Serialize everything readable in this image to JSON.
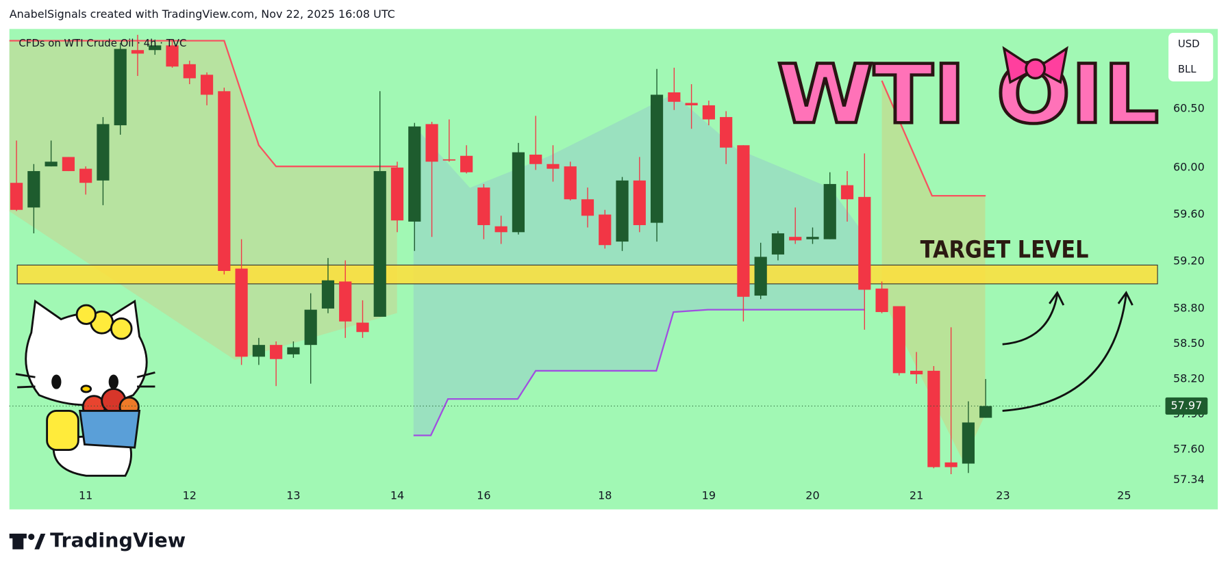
{
  "chart_data": {
    "type": "candlestick",
    "attribution": "AnabelSignals created with TradingView.com, Nov 22, 2025 16:08 UTC",
    "title": "CFDs on WTI Crude Oil · 4h · TVC",
    "currency": "USD",
    "unit": "BLL",
    "annotation": "WTI OIL",
    "brand": "TradingView",
    "up_color": "#1e5c2e",
    "down_color": "#f23645",
    "open": [
      59.87,
      59.66,
      60.01,
      60.09,
      59.99,
      59.89,
      60.36,
      61.0,
      61.0,
      61.04,
      60.88,
      60.79,
      60.65,
      59.14,
      58.39,
      58.49,
      58.41,
      58.49,
      58.8,
      59.03,
      58.68,
      58.73,
      60.0,
      59.54,
      60.37,
      60.07,
      60.1,
      59.83,
      59.5,
      59.45,
      60.11,
      60.03,
      60.01,
      59.73,
      59.6,
      59.37,
      59.89,
      59.53,
      60.64,
      60.55,
      60.53,
      60.43,
      60.19,
      58.91,
      59.26,
      59.41,
      59.39,
      59.39,
      59.85,
      59.75,
      58.97,
      58.82,
      58.27,
      58.27,
      57.49,
      57.48,
      57.87
    ],
    "high": [
      60.23,
      60.03,
      60.23,
      60.09,
      60.01,
      60.43,
      61.06,
      61.13,
      61.09,
      61.09,
      60.91,
      60.81,
      60.68,
      59.39,
      58.55,
      58.52,
      58.52,
      58.93,
      59.23,
      59.21,
      58.87,
      60.65,
      60.05,
      60.38,
      60.39,
      60.41,
      60.19,
      59.86,
      59.59,
      60.21,
      60.44,
      60.19,
      60.05,
      59.83,
      59.64,
      59.92,
      60.09,
      60.84,
      60.85,
      60.71,
      60.57,
      60.48,
      60.19,
      59.36,
      59.46,
      59.66,
      59.49,
      59.96,
      59.97,
      60.12,
      59.03,
      58.82,
      58.43,
      58.31,
      58.64,
      58.01,
      58.2
    ],
    "low": [
      59.63,
      59.44,
      60.01,
      59.97,
      59.77,
      59.68,
      60.28,
      60.78,
      60.96,
      60.85,
      60.71,
      60.53,
      59.09,
      58.32,
      58.32,
      58.14,
      58.38,
      58.16,
      58.76,
      58.55,
      58.55,
      58.73,
      59.45,
      59.29,
      59.41,
      60.05,
      59.95,
      59.39,
      59.35,
      59.43,
      59.98,
      59.88,
      59.72,
      59.49,
      59.31,
      59.29,
      59.45,
      59.37,
      60.49,
      60.33,
      60.36,
      60.03,
      58.69,
      58.88,
      59.21,
      59.35,
      59.35,
      59.39,
      59.54,
      58.62,
      58.76,
      58.23,
      58.16,
      57.44,
      57.39,
      57.4,
      57.87
    ],
    "close": [
      59.64,
      59.97,
      60.05,
      59.97,
      59.87,
      60.37,
      61.01,
      60.97,
      61.04,
      60.86,
      60.76,
      60.62,
      59.12,
      58.39,
      58.49,
      58.37,
      58.47,
      58.79,
      59.04,
      58.69,
      58.6,
      59.97,
      59.55,
      60.35,
      60.05,
      60.06,
      59.96,
      59.51,
      59.45,
      60.13,
      60.03,
      59.99,
      59.73,
      59.59,
      59.34,
      59.89,
      59.51,
      60.62,
      60.56,
      60.53,
      60.41,
      60.17,
      58.9,
      59.24,
      59.44,
      59.38,
      59.41,
      59.86,
      59.73,
      58.96,
      58.77,
      58.25,
      58.24,
      57.45,
      57.45,
      57.83,
      57.97
    ],
    "last_price": {
      "value": 57.97,
      "label": "57.97",
      "color": "#1e5c2e"
    },
    "overlays": [
      {
        "color": "#f7525f",
        "x": [
          -0.41,
          12,
          14,
          15,
          22
        ],
        "values": [
          61.08,
          61.08,
          60.19,
          60.01,
          60.01
        ]
      },
      {
        "color": "#f7525f",
        "x": [
          50,
          52.9,
          56
        ],
        "values": [
          60.74,
          59.76,
          59.76
        ]
      },
      {
        "color": "#a04ee0",
        "x": [
          22.94,
          23.94,
          24.93,
          28.96,
          30,
          36.97,
          37.96,
          39.95,
          49
        ],
        "values": [
          57.72,
          57.72,
          58.03,
          58.03,
          58.27,
          58.27,
          58.77,
          58.79,
          58.79
        ]
      }
    ],
    "target_zone": {
      "low": 59.01,
      "high": 59.17,
      "label": "TARGET LEVEL",
      "color": "#ffdf3a"
    },
    "xlim": [
      -0.41,
      66.11
    ],
    "ylim": [
      57.09,
      61.18
    ],
    "xticks": [
      {
        "value": 4,
        "label": "11"
      },
      {
        "value": 10,
        "label": "12"
      },
      {
        "value": 16,
        "label": "13"
      },
      {
        "value": 22,
        "label": "14"
      },
      {
        "value": 27,
        "label": "16"
      },
      {
        "value": 34,
        "label": "18"
      },
      {
        "value": 40,
        "label": "19"
      },
      {
        "value": 46,
        "label": "20"
      },
      {
        "value": 52,
        "label": "21"
      },
      {
        "value": 57,
        "label": "23"
      },
      {
        "value": 64,
        "label": "25"
      }
    ],
    "yticks": [
      {
        "value": 60.5,
        "label": "60.50"
      },
      {
        "value": 60.0,
        "label": "60.00"
      },
      {
        "value": 59.6,
        "label": "59.60"
      },
      {
        "value": 59.2,
        "label": "59.20"
      },
      {
        "value": 58.8,
        "label": "58.80"
      },
      {
        "value": 58.5,
        "label": "58.50"
      },
      {
        "value": 58.2,
        "label": "58.20"
      },
      {
        "value": 57.9,
        "label": "57.90"
      },
      {
        "value": 57.6,
        "label": "57.60"
      },
      {
        "value": 57.34,
        "label": "57.34"
      }
    ]
  }
}
